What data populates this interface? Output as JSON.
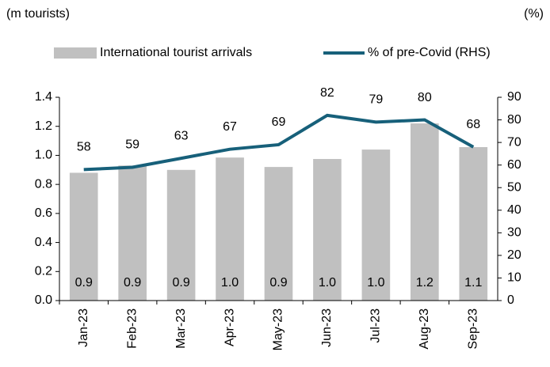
{
  "chart_data": {
    "type": "bar",
    "y_axis_label": "(m tourists)",
    "y2_axis_label": "(%)",
    "categories": [
      "Jan-23",
      "Feb-23",
      "Mar-23",
      "Apr-23",
      "May-23",
      "Jun-23",
      "Jul-23",
      "Aug-23",
      "Sep-23"
    ],
    "series": [
      {
        "name": "International tourist arrivals",
        "type": "bar",
        "color": "#c0c0c0",
        "values": [
          0.88,
          0.93,
          0.9,
          0.985,
          0.92,
          0.975,
          1.04,
          1.22,
          1.057
        ],
        "value_labels": [
          "0.9",
          "0.9",
          "0.9",
          "1.0",
          "0.9",
          "1.0",
          "1.0",
          "1.2",
          "1.1"
        ]
      },
      {
        "name": "% of pre-Covid (RHS)",
        "type": "line",
        "axis": "y2",
        "color": "#17607a",
        "values": [
          58,
          59,
          63,
          67,
          69,
          82,
          79,
          80,
          68
        ]
      }
    ],
    "ylim": [
      0,
      1.4
    ],
    "yticks": [
      {
        "value": 0,
        "label": "0.0"
      },
      0.2,
      0.4,
      0.6,
      0.8,
      {
        "value": 1,
        "label": "1.0"
      },
      1.2,
      1.4
    ],
    "y2lim": [
      0,
      90
    ],
    "y2ticks": [
      0,
      10,
      20,
      30,
      40,
      50,
      60,
      70,
      80,
      90
    ],
    "legend": "top"
  }
}
